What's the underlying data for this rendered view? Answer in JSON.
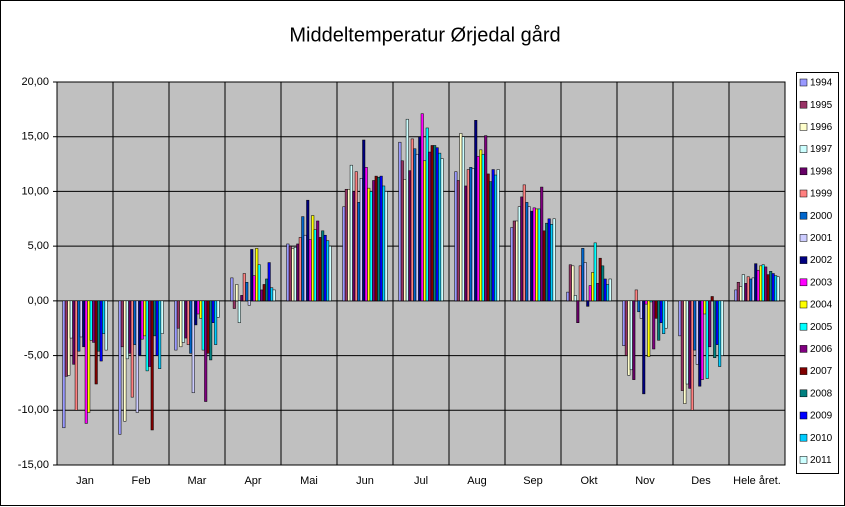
{
  "chart_data": {
    "type": "bar",
    "title": "Middeltemperatur Ørjedal gård",
    "categories": [
      "Jan",
      "Feb",
      "Mar",
      "Apr",
      "Mai",
      "Jun",
      "Jul",
      "Aug",
      "Sep",
      "Okt",
      "Nov",
      "Des",
      "Hele året."
    ],
    "ylim": [
      -15,
      20
    ],
    "yticks": [
      {
        "value": -15,
        "label": "-15,00"
      },
      {
        "value": -10,
        "label": "-10,00"
      },
      {
        "value": -5,
        "label": "-5,00"
      },
      {
        "value": 0,
        "label": "0,00"
      },
      {
        "value": 5,
        "label": "5,00"
      },
      {
        "value": 10,
        "label": "10,00"
      },
      {
        "value": 15,
        "label": "15,00"
      },
      {
        "value": 20,
        "label": "20,00"
      }
    ],
    "grid": true,
    "legend": "right",
    "series": [
      {
        "name": "1994",
        "color": "#9999FF",
        "values": [
          -11.6,
          -12.2,
          -4.5,
          2.1,
          5.2,
          8.6,
          14.5,
          11.8,
          6.7,
          0.8,
          -4.1,
          -3.2,
          1.0
        ]
      },
      {
        "name": "1995",
        "color": "#993366",
        "values": [
          -6.9,
          -4.2,
          -2.5,
          -0.7,
          5.0,
          10.2,
          12.8,
          11.0,
          7.3,
          3.3,
          -5.0,
          -8.2,
          1.7
        ]
      },
      {
        "name": "1996",
        "color": "#FFFFCC",
        "values": [
          -6.8,
          -11.0,
          -4.2,
          1.5,
          4.8,
          10.2,
          11.1,
          15.3,
          7.3,
          3.2,
          -6.8,
          -9.4,
          1.3
        ]
      },
      {
        "name": "1997",
        "color": "#CCFFFF",
        "values": [
          -3.4,
          -5.3,
          -3.8,
          -2.0,
          4.9,
          12.4,
          16.6,
          15.0,
          8.6,
          0.5,
          -6.3,
          -7.6,
          2.4
        ]
      },
      {
        "name": "1998",
        "color": "#660066",
        "values": [
          -5.8,
          -4.8,
          -3.4,
          0.5,
          5.2,
          10.0,
          11.9,
          10.5,
          9.5,
          -2.0,
          -7.2,
          -8.0,
          1.6
        ]
      },
      {
        "name": "1999",
        "color": "#FF8080",
        "values": [
          -10.0,
          -8.8,
          -4.0,
          2.5,
          5.8,
          11.8,
          14.8,
          12.0,
          10.6,
          3.2,
          1.0,
          -10.0,
          2.2
        ]
      },
      {
        "name": "2000",
        "color": "#0066CC",
        "values": [
          -4.6,
          -4.0,
          -4.8,
          1.7,
          7.7,
          9.0,
          13.9,
          12.2,
          9.0,
          4.8,
          -1.0,
          -4.5,
          2.0
        ]
      },
      {
        "name": "2001",
        "color": "#CCCCFF",
        "values": [
          -3.3,
          -10.2,
          -8.4,
          -0.4,
          6.0,
          11.2,
          13.4,
          12.1,
          8.6,
          3.5,
          -1.6,
          -5.8,
          2.1
        ]
      },
      {
        "name": "2002",
        "color": "#000080",
        "values": [
          -4.2,
          -5.0,
          -2.2,
          4.7,
          9.2,
          14.7,
          15.0,
          16.5,
          8.2,
          -0.5,
          -8.5,
          -7.8,
          3.4
        ]
      },
      {
        "name": "2003",
        "color": "#FF00FF",
        "values": [
          -11.2,
          -3.5,
          -1.2,
          2.3,
          5.6,
          12.2,
          17.1,
          13.2,
          8.5,
          1.4,
          -0.3,
          -7.2,
          2.8
        ]
      },
      {
        "name": "2004",
        "color": "#FFFF00",
        "values": [
          -10.2,
          -3.2,
          -1.6,
          4.8,
          7.8,
          10.3,
          12.8,
          13.8,
          8.4,
          2.6,
          -5.1,
          -1.2,
          3.2
        ]
      },
      {
        "name": "2005",
        "color": "#00FFFF",
        "values": [
          -3.6,
          -6.4,
          -4.5,
          3.3,
          6.5,
          10.0,
          15.8,
          13.4,
          8.4,
          5.3,
          -0.1,
          -7.1,
          3.3
        ]
      },
      {
        "name": "2006",
        "color": "#800080",
        "values": [
          -3.8,
          -6.0,
          -9.2,
          1.0,
          7.3,
          11.0,
          13.6,
          15.1,
          10.4,
          1.6,
          -4.4,
          -4.2,
          3.1
        ]
      },
      {
        "name": "2007",
        "color": "#800000",
        "values": [
          -7.6,
          -11.8,
          -4.8,
          1.5,
          5.8,
          11.4,
          14.2,
          11.6,
          6.4,
          3.9,
          -1.6,
          0.4,
          2.4
        ]
      },
      {
        "name": "2008",
        "color": "#008080",
        "values": [
          -4.6,
          -3.2,
          -5.4,
          2.0,
          6.4,
          11.3,
          14.2,
          10.9,
          7.1,
          3.2,
          -3.6,
          -5.2,
          2.7
        ]
      },
      {
        "name": "2009",
        "color": "#0000FF",
        "values": [
          -5.5,
          -5.0,
          -2.0,
          3.5,
          6.0,
          11.4,
          14.0,
          12.0,
          7.5,
          2.0,
          -2.0,
          -4.0,
          2.5
        ]
      },
      {
        "name": "2010",
        "color": "#00CCFF",
        "values": [
          -3.0,
          -6.2,
          -4.0,
          1.2,
          5.5,
          10.5,
          13.5,
          11.5,
          7.0,
          1.5,
          -3.0,
          -6.0,
          2.3
        ]
      },
      {
        "name": "2011",
        "color": "#CCFFFF",
        "values": [
          -4.5,
          -3.0,
          -1.5,
          1.0,
          5.0,
          10.0,
          13.0,
          12.0,
          7.5,
          2.0,
          -2.5,
          -5.0,
          2.2
        ]
      }
    ]
  }
}
